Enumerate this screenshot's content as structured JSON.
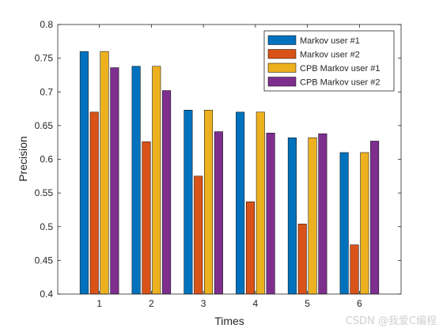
{
  "chart_data": {
    "type": "bar",
    "categories": [
      "1",
      "2",
      "3",
      "4",
      "5",
      "6"
    ],
    "series": [
      {
        "name": "Markov user #1",
        "color": "#0072BD",
        "values": [
          0.76,
          0.738,
          0.673,
          0.67,
          0.632,
          0.61
        ]
      },
      {
        "name": "Markov user #2",
        "color": "#D95319",
        "values": [
          0.67,
          0.626,
          0.575,
          0.537,
          0.504,
          0.473
        ]
      },
      {
        "name": "CPB Markov user #1",
        "color": "#EDB120",
        "values": [
          0.76,
          0.738,
          0.673,
          0.67,
          0.632,
          0.61
        ]
      },
      {
        "name": "CPB Markov user #2",
        "color": "#7E2F8E",
        "values": [
          0.736,
          0.702,
          0.641,
          0.639,
          0.638,
          0.627
        ]
      }
    ],
    "xlabel": "Times",
    "ylabel": "Precision",
    "ylim": [
      0.4,
      0.8
    ],
    "yticks": [
      "0.4",
      "0.45",
      "0.5",
      "0.55",
      "0.6",
      "0.65",
      "0.7",
      "0.75",
      "0.8"
    ],
    "grid": false,
    "legend_position": "top-right"
  },
  "watermark": "CSDN @我爱C编程"
}
